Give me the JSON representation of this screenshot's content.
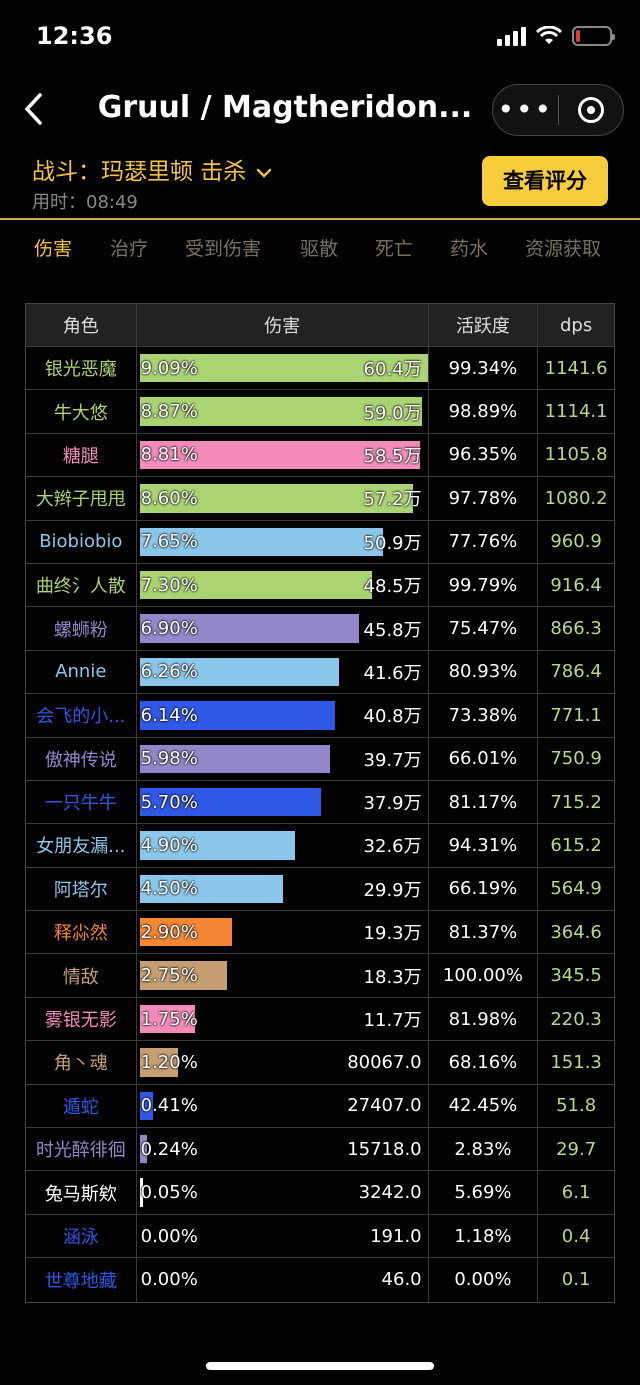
{
  "status": {
    "time": "12:36"
  },
  "nav": {
    "title": "Gruul / Magtheridon..."
  },
  "fight": {
    "label": "战斗：玛瑟里顿 击杀",
    "time": "用时：08:49",
    "rate_button": "查看评分"
  },
  "tabs": [
    "伤害",
    "治疗",
    "受到伤害",
    "驱散",
    "死亡",
    "药水",
    "资源获取"
  ],
  "table": {
    "headers": {
      "role": "角色",
      "damage": "伤害",
      "activity": "活跃度",
      "dps": "dps"
    },
    "rows": [
      {
        "name": "银光恶魔",
        "pct": "9.09%",
        "amount": "60.4万",
        "activity": "99.34%",
        "dps": "1141.6",
        "share": 1.0,
        "color": "#aad372"
      },
      {
        "name": "牛大悠",
        "pct": "8.87%",
        "amount": "59.0万",
        "activity": "98.89%",
        "dps": "1114.1",
        "share": 0.976,
        "color": "#aad372"
      },
      {
        "name": "糖腿",
        "pct": "8.81%",
        "amount": "58.5万",
        "activity": "96.35%",
        "dps": "1105.8",
        "share": 0.969,
        "color": "#f48cba"
      },
      {
        "name": "大辫子甩甩",
        "pct": "8.60%",
        "amount": "57.2万",
        "activity": "97.78%",
        "dps": "1080.2",
        "share": 0.946,
        "color": "#aad372"
      },
      {
        "name": "Biobiobio",
        "pct": "7.65%",
        "amount": "50.9万",
        "activity": "77.76%",
        "dps": "960.9",
        "share": 0.842,
        "color": "#8bc7ea"
      },
      {
        "name": "曲终氵人散",
        "pct": "7.30%",
        "amount": "48.5万",
        "activity": "99.79%",
        "dps": "916.4",
        "share": 0.803,
        "color": "#aad372"
      },
      {
        "name": "螺蛳粉",
        "pct": "6.90%",
        "amount": "45.8万",
        "activity": "75.47%",
        "dps": "866.3",
        "share": 0.759,
        "color": "#9386c9"
      },
      {
        "name": "Annie",
        "pct": "6.26%",
        "amount": "41.6万",
        "activity": "80.93%",
        "dps": "786.4",
        "share": 0.689,
        "color": "#8bc7ea"
      },
      {
        "name": "会飞的小...",
        "pct": "6.14%",
        "amount": "40.8万",
        "activity": "73.38%",
        "dps": "771.1",
        "share": 0.675,
        "color": "#2f58e6"
      },
      {
        "name": "傲神传说",
        "pct": "5.98%",
        "amount": "39.7万",
        "activity": "66.01%",
        "dps": "750.9",
        "share": 0.658,
        "color": "#9386c9"
      },
      {
        "name": "一只牛牛",
        "pct": "5.70%",
        "amount": "37.9万",
        "activity": "81.17%",
        "dps": "715.2",
        "share": 0.627,
        "color": "#2f58e6"
      },
      {
        "name": "女朋友漏...",
        "pct": "4.90%",
        "amount": "32.6万",
        "activity": "94.31%",
        "dps": "615.2",
        "share": 0.539,
        "color": "#8bc7ea"
      },
      {
        "name": "阿塔尔",
        "pct": "4.50%",
        "amount": "29.9万",
        "activity": "66.19%",
        "dps": "564.9",
        "share": 0.495,
        "color": "#8bc7ea"
      },
      {
        "name": "释尛然",
        "pct": "2.90%",
        "amount": "19.3万",
        "activity": "81.37%",
        "dps": "364.6",
        "share": 0.319,
        "color": "#f58634"
      },
      {
        "name": "情敌",
        "pct": "2.75%",
        "amount": "18.3万",
        "activity": "100.00%",
        "dps": "345.5",
        "share": 0.303,
        "color": "#c59e72"
      },
      {
        "name": "雾银无影",
        "pct": "1.75%",
        "amount": "11.7万",
        "activity": "81.98%",
        "dps": "220.3",
        "share": 0.193,
        "color": "#f48cba"
      },
      {
        "name": "角丶魂",
        "pct": "1.20%",
        "amount": "80067.0",
        "activity": "68.16%",
        "dps": "151.3",
        "share": 0.132,
        "color": "#c59e72"
      },
      {
        "name": "遁蛇",
        "pct": "0.41%",
        "amount": "27407.0",
        "activity": "42.45%",
        "dps": "51.8",
        "share": 0.045,
        "color": "#2f58e6"
      },
      {
        "name": "时光醉徘徊",
        "pct": "0.24%",
        "amount": "15718.0",
        "activity": "2.83%",
        "dps": "29.7",
        "share": 0.026,
        "color": "#9386c9"
      },
      {
        "name": "兔马斯欸",
        "pct": "0.05%",
        "amount": "3242.0",
        "activity": "5.69%",
        "dps": "6.1",
        "share": 0.006,
        "color": "#ffffff"
      },
      {
        "name": "涵泳",
        "pct": "0.00%",
        "amount": "191.0",
        "activity": "1.18%",
        "dps": "0.4",
        "share": 0.0,
        "color": "#2f58e6"
      },
      {
        "name": "世尊地藏",
        "pct": "0.00%",
        "amount": "46.0",
        "activity": "0.00%",
        "dps": "0.1",
        "share": 0.0,
        "color": "#2f58e6"
      }
    ]
  }
}
